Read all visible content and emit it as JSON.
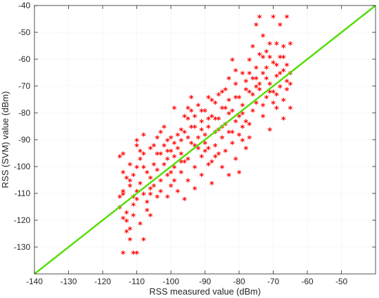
{
  "chart_data": {
    "type": "scatter",
    "title": "",
    "xlabel": "RSS measured value (dBm)",
    "ylabel": "RSS (SVM) value (dBm)",
    "xlim": [
      -140,
      -40
    ],
    "ylim": [
      -140,
      -40
    ],
    "xticks": [
      -140,
      -130,
      -120,
      -110,
      -100,
      -90,
      -80,
      -70,
      -60,
      -50
    ],
    "yticks": [
      -130,
      -120,
      -110,
      -100,
      -90,
      -80,
      -70,
      -60,
      -50,
      -40
    ],
    "grid": true,
    "legend": false,
    "marker": "*",
    "series": [
      {
        "kind": "scatter",
        "color": "#ff0000",
        "points": [
          [
            -115,
            -97
          ],
          [
            -115,
            -112
          ],
          [
            -115,
            -116
          ],
          [
            -114,
            -120
          ],
          [
            -114,
            -96
          ],
          [
            -114,
            -110
          ],
          [
            -114,
            -111
          ],
          [
            -114,
            -133
          ],
          [
            -113,
            -118
          ],
          [
            -113,
            -121
          ],
          [
            -113,
            -125
          ],
          [
            -112,
            -128
          ],
          [
            -112,
            -100
          ],
          [
            -112,
            -106
          ],
          [
            -112,
            -124
          ],
          [
            -111,
            -133
          ],
          [
            -111,
            -112
          ],
          [
            -111,
            -115
          ],
          [
            -111,
            -104
          ],
          [
            -110,
            -133
          ],
          [
            -110,
            -110
          ],
          [
            -110,
            -113
          ],
          [
            -110,
            -93
          ],
          [
            -110,
            -91
          ],
          [
            -109,
            -98
          ],
          [
            -109,
            -107
          ],
          [
            -109,
            -122
          ],
          [
            -108,
            -89
          ],
          [
            -108,
            -128
          ],
          [
            -108,
            -96
          ],
          [
            -107,
            -114
          ],
          [
            -107,
            -103
          ],
          [
            -106,
            -111
          ],
          [
            -106,
            -109
          ],
          [
            -106,
            -119
          ],
          [
            -105,
            -100
          ],
          [
            -105,
            -108
          ],
          [
            -104,
            -90
          ],
          [
            -104,
            -102
          ],
          [
            -104,
            -96
          ],
          [
            -103,
            -106
          ],
          [
            -103,
            -110
          ],
          [
            -102,
            -86
          ],
          [
            -102,
            -93
          ],
          [
            -102,
            -100
          ],
          [
            -101,
            -112
          ],
          [
            -101,
            -98
          ],
          [
            -101,
            -104
          ],
          [
            -100,
            -108
          ],
          [
            -100,
            -90
          ],
          [
            -100,
            -95
          ],
          [
            -99,
            -79
          ],
          [
            -99,
            -92
          ],
          [
            -99,
            -101
          ],
          [
            -98,
            -110
          ],
          [
            -98,
            -94
          ],
          [
            -97,
            -87
          ],
          [
            -97,
            -96
          ],
          [
            -97,
            -103
          ],
          [
            -96,
            -82
          ],
          [
            -96,
            -88
          ],
          [
            -96,
            -113
          ],
          [
            -95,
            -90
          ],
          [
            -95,
            -83
          ],
          [
            -95,
            -98
          ],
          [
            -94,
            -75
          ],
          [
            -94,
            -80
          ],
          [
            -94,
            -92
          ],
          [
            -93,
            -86
          ],
          [
            -93,
            -101
          ],
          [
            -93,
            -109
          ],
          [
            -92,
            -78
          ],
          [
            -92,
            -94
          ],
          [
            -91,
            -84
          ],
          [
            -91,
            -97
          ],
          [
            -91,
            -104
          ],
          [
            -90,
            -80
          ],
          [
            -90,
            -89
          ],
          [
            -90,
            -92
          ],
          [
            -89,
            -75
          ],
          [
            -89,
            -86
          ],
          [
            -89,
            -94
          ],
          [
            -88,
            -82
          ],
          [
            -88,
            -99
          ],
          [
            -88,
            -107
          ],
          [
            -87,
            -77
          ],
          [
            -87,
            -88
          ],
          [
            -87,
            -93
          ],
          [
            -86,
            -74
          ],
          [
            -86,
            -83
          ],
          [
            -86,
            -96
          ],
          [
            -85,
            -79
          ],
          [
            -85,
            -90
          ],
          [
            -85,
            -101
          ],
          [
            -84,
            -72
          ],
          [
            -84,
            -85
          ],
          [
            -84,
            -95
          ],
          [
            -83,
            -76
          ],
          [
            -83,
            -88
          ],
          [
            -83,
            -104
          ],
          [
            -82,
            -61
          ],
          [
            -82,
            -80
          ],
          [
            -82,
            -92
          ],
          [
            -81,
            -70
          ],
          [
            -81,
            -84
          ],
          [
            -81,
            -98
          ],
          [
            -80,
            -75
          ],
          [
            -80,
            -89
          ],
          [
            -80,
            -103
          ],
          [
            -79,
            -66
          ],
          [
            -79,
            -78
          ],
          [
            -79,
            -86
          ],
          [
            -78,
            -72
          ],
          [
            -78,
            -84
          ],
          [
            -78,
            -94
          ],
          [
            -77,
            -61
          ],
          [
            -77,
            -73
          ],
          [
            -77,
            -90
          ],
          [
            -76,
            -56
          ],
          [
            -76,
            -68
          ],
          [
            -76,
            -80
          ],
          [
            -75,
            -48
          ],
          [
            -75,
            -64
          ],
          [
            -75,
            -77
          ],
          [
            -74,
            -45
          ],
          [
            -74,
            -59
          ],
          [
            -74,
            -72
          ],
          [
            -73,
            -52
          ],
          [
            -73,
            -66
          ],
          [
            -73,
            -82
          ],
          [
            -72,
            -58
          ],
          [
            -72,
            -68
          ],
          [
            -72,
            -75
          ],
          [
            -71,
            -60
          ],
          [
            -71,
            -70
          ],
          [
            -71,
            -87
          ],
          [
            -70,
            -45
          ],
          [
            -70,
            -62
          ],
          [
            -70,
            -77
          ],
          [
            -69,
            -55
          ],
          [
            -69,
            -67
          ],
          [
            -69,
            -74
          ],
          [
            -68,
            -48
          ],
          [
            -68,
            -60
          ],
          [
            -68,
            -71
          ],
          [
            -67,
            -56
          ],
          [
            -67,
            -65
          ],
          [
            -67,
            -83
          ],
          [
            -66,
            -45
          ],
          [
            -66,
            -63
          ],
          [
            -66,
            -72
          ],
          [
            -65,
            -55
          ],
          [
            -65,
            -66
          ],
          [
            -65,
            -79
          ],
          [
            -114,
            -103
          ],
          [
            -112,
            -108
          ],
          [
            -109,
            -95
          ],
          [
            -107,
            -117
          ],
          [
            -105,
            -93
          ],
          [
            -103,
            -96
          ],
          [
            -100,
            -103
          ],
          [
            -98,
            -89
          ],
          [
            -96,
            -99
          ],
          [
            -94,
            -86
          ],
          [
            -92,
            -90
          ],
          [
            -90,
            -95
          ],
          [
            -88,
            -76
          ],
          [
            -86,
            -87
          ],
          [
            -84,
            -79
          ],
          [
            -82,
            -88
          ],
          [
            -80,
            -82
          ],
          [
            -78,
            -69
          ],
          [
            -76,
            -74
          ],
          [
            -74,
            -70
          ],
          [
            -72,
            -64
          ],
          [
            -70,
            -73
          ],
          [
            -68,
            -66
          ],
          [
            -66,
            -69
          ],
          [
            -111,
            -119
          ],
          [
            -108,
            -101
          ],
          [
            -106,
            -94
          ],
          [
            -104,
            -112
          ],
          [
            -101,
            -91
          ],
          [
            -99,
            -106
          ],
          [
            -97,
            -91
          ],
          [
            -95,
            -106
          ],
          [
            -93,
            -82
          ],
          [
            -91,
            -87
          ],
          [
            -89,
            -100
          ],
          [
            -87,
            -83
          ],
          [
            -85,
            -86
          ],
          [
            -83,
            -68
          ],
          [
            -81,
            -75
          ],
          [
            -79,
            -91
          ],
          [
            -77,
            -66
          ],
          [
            -75,
            -71
          ],
          [
            -73,
            -78
          ],
          [
            -71,
            -55
          ],
          [
            -69,
            -79
          ],
          [
            -67,
            -76
          ],
          [
            -113,
            -105
          ],
          [
            -110,
            -101
          ],
          [
            -108,
            -111
          ],
          [
            -106,
            -105
          ],
          [
            -103,
            -88
          ],
          [
            -101,
            -95
          ],
          [
            -99,
            -97
          ],
          [
            -97,
            -99
          ],
          [
            -95,
            -79
          ],
          [
            -93,
            -93
          ],
          [
            -91,
            -80
          ],
          [
            -89,
            -83
          ],
          [
            -87,
            -97
          ],
          [
            -85,
            -73
          ],
          [
            -83,
            -81
          ],
          [
            -81,
            -65
          ],
          [
            -79,
            -81
          ],
          [
            -77,
            -85
          ],
          [
            -75,
            -68
          ],
          [
            -73,
            -60
          ],
          [
            -71,
            -73
          ],
          [
            -69,
            -63
          ],
          [
            -67,
            -60
          ],
          [
            -65,
            -70
          ]
        ]
      },
      {
        "kind": "line",
        "color": "#55dd00",
        "points": [
          [
            -140,
            -140
          ],
          [
            -40,
            -40
          ]
        ]
      }
    ]
  }
}
